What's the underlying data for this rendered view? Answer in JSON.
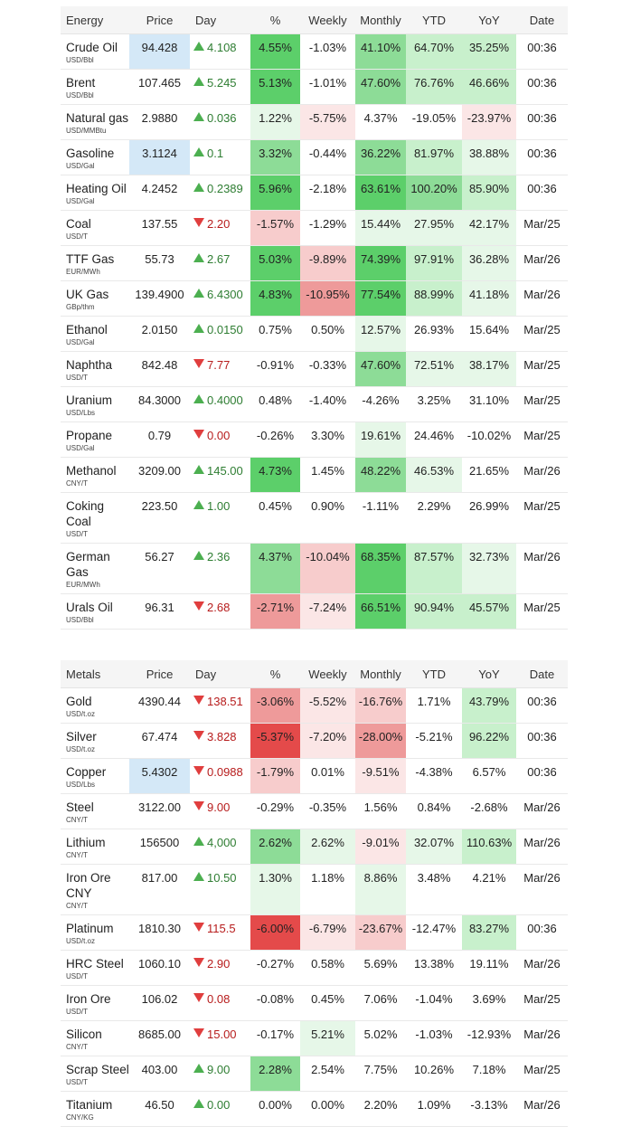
{
  "colors": {
    "strong_green": "#5ccf6a",
    "mid_green": "#8ddc97",
    "light_green": "#c8f0cc",
    "faint_green": "#e6f7e8",
    "strong_red": "#e44a4a",
    "mid_red": "#ee9a9a",
    "light_red": "#f7cccc",
    "faint_red": "#fbe6e6",
    "highlight_blue": "#d4e8f7",
    "up_arrow": "#4caf50",
    "down_arrow": "#e03e3e"
  },
  "energy": {
    "headers": [
      "Energy",
      "Price",
      "Day",
      "%",
      "Weekly",
      "Monthly",
      "YTD",
      "YoY",
      "Date"
    ],
    "rows": [
      {
        "name": "Crude Oil",
        "unit": "USD/Bbl",
        "price": "94.428",
        "dir": "up",
        "day": "4.108",
        "pct": "4.55%",
        "weekly": "-1.03%",
        "monthly": "41.10%",
        "ytd": "64.70%",
        "yoy": "35.25%",
        "date": "00:36",
        "hl": true,
        "c": [
          "sg",
          "",
          "mg",
          "lg",
          "lg"
        ]
      },
      {
        "name": "Brent",
        "unit": "USD/Bbl",
        "price": "107.465",
        "dir": "up",
        "day": "5.245",
        "pct": "5.13%",
        "weekly": "-1.01%",
        "monthly": "47.60%",
        "ytd": "76.76%",
        "yoy": "46.66%",
        "date": "00:36",
        "hl": false,
        "c": [
          "sg",
          "",
          "mg",
          "lg",
          "lg"
        ]
      },
      {
        "name": "Natural gas",
        "unit": "USD/MMBtu",
        "price": "2.9880",
        "dir": "up",
        "day": "0.036",
        "pct": "1.22%",
        "weekly": "-5.75%",
        "monthly": "4.37%",
        "ytd": "-19.05%",
        "yoy": "-23.97%",
        "date": "00:36",
        "hl": false,
        "c": [
          "fg",
          "fr",
          "",
          "",
          "fr"
        ]
      },
      {
        "name": "Gasoline",
        "unit": "USD/Gal",
        "price": "3.1124",
        "dir": "up",
        "day": "0.1",
        "pct": "3.32%",
        "weekly": "-0.44%",
        "monthly": "36.22%",
        "ytd": "81.97%",
        "yoy": "38.88%",
        "date": "00:36",
        "hl": true,
        "c": [
          "mg",
          "",
          "mg",
          "lg",
          "fg"
        ]
      },
      {
        "name": "Heating Oil",
        "unit": "USD/Gal",
        "price": "4.2452",
        "dir": "up",
        "day": "0.2389",
        "pct": "5.96%",
        "weekly": "-2.18%",
        "monthly": "63.61%",
        "ytd": "100.20%",
        "yoy": "85.90%",
        "date": "00:36",
        "hl": false,
        "c": [
          "sg",
          "",
          "sg",
          "mg",
          "lg"
        ]
      },
      {
        "name": "Coal",
        "unit": "USD/T",
        "price": "137.55",
        "dir": "down",
        "day": "2.20",
        "pct": "-1.57%",
        "weekly": "-1.29%",
        "monthly": "15.44%",
        "ytd": "27.95%",
        "yoy": "42.17%",
        "date": "Mar/25",
        "hl": false,
        "c": [
          "lr",
          "",
          "fg",
          "fg",
          "fg"
        ]
      },
      {
        "name": "TTF Gas",
        "unit": "EUR/MWh",
        "price": "55.73",
        "dir": "up",
        "day": "2.67",
        "pct": "5.03%",
        "weekly": "-9.89%",
        "monthly": "74.39%",
        "ytd": "97.91%",
        "yoy": "36.28%",
        "date": "Mar/26",
        "hl": false,
        "c": [
          "sg",
          "lr",
          "sg",
          "lg",
          "fg"
        ]
      },
      {
        "name": "UK Gas",
        "unit": "GBp/thm",
        "price": "139.4900",
        "dir": "up",
        "day": "6.4300",
        "pct": "4.83%",
        "weekly": "-10.95%",
        "monthly": "77.54%",
        "ytd": "88.99%",
        "yoy": "41.18%",
        "date": "Mar/26",
        "hl": false,
        "c": [
          "sg",
          "mr",
          "sg",
          "lg",
          "fg"
        ]
      },
      {
        "name": "Ethanol",
        "unit": "USD/Gal",
        "price": "2.0150",
        "dir": "up",
        "day": "0.0150",
        "pct": "0.75%",
        "weekly": "0.50%",
        "monthly": "12.57%",
        "ytd": "26.93%",
        "yoy": "15.64%",
        "date": "Mar/25",
        "hl": false,
        "c": [
          "",
          "",
          "fg",
          "",
          ""
        ]
      },
      {
        "name": "Naphtha",
        "unit": "USD/T",
        "price": "842.48",
        "dir": "down",
        "day": "7.77",
        "pct": "-0.91%",
        "weekly": "-0.33%",
        "monthly": "47.60%",
        "ytd": "72.51%",
        "yoy": "38.17%",
        "date": "Mar/25",
        "hl": false,
        "c": [
          "",
          "",
          "mg",
          "fg",
          "fg"
        ]
      },
      {
        "name": "Uranium",
        "unit": "USD/Lbs",
        "price": "84.3000",
        "dir": "up",
        "day": "0.4000",
        "pct": "0.48%",
        "weekly": "-1.40%",
        "monthly": "-4.26%",
        "ytd": "3.25%",
        "yoy": "31.10%",
        "date": "Mar/25",
        "hl": false,
        "c": [
          "",
          "",
          "",
          "",
          ""
        ]
      },
      {
        "name": "Propane",
        "unit": "USD/Gal",
        "price": "0.79",
        "dir": "down",
        "day": "0.00",
        "pct": "-0.26%",
        "weekly": "3.30%",
        "monthly": "19.61%",
        "ytd": "24.46%",
        "yoy": "-10.02%",
        "date": "Mar/25",
        "hl": false,
        "c": [
          "",
          "",
          "fg",
          "",
          ""
        ]
      },
      {
        "name": "Methanol",
        "unit": "CNY/T",
        "price": "3209.00",
        "dir": "up",
        "day": "145.00",
        "pct": "4.73%",
        "weekly": "1.45%",
        "monthly": "48.22%",
        "ytd": "46.53%",
        "yoy": "21.65%",
        "date": "Mar/26",
        "hl": false,
        "c": [
          "sg",
          "",
          "mg",
          "fg",
          ""
        ]
      },
      {
        "name": "Coking Coal",
        "unit": "USD/T",
        "price": "223.50",
        "dir": "up",
        "day": "1.00",
        "pct": "0.45%",
        "weekly": "0.90%",
        "monthly": "-1.11%",
        "ytd": "2.29%",
        "yoy": "26.99%",
        "date": "Mar/25",
        "hl": false,
        "c": [
          "",
          "",
          "",
          "",
          ""
        ]
      },
      {
        "name": "German Gas",
        "unit": "EUR/MWh",
        "price": "56.27",
        "dir": "up",
        "day": "2.36",
        "pct": "4.37%",
        "weekly": "-10.04%",
        "monthly": "68.35%",
        "ytd": "87.57%",
        "yoy": "32.73%",
        "date": "Mar/26",
        "hl": false,
        "c": [
          "mg",
          "lr",
          "sg",
          "lg",
          "fg"
        ]
      },
      {
        "name": "Urals Oil",
        "unit": "USD/Bbl",
        "price": "96.31",
        "dir": "down",
        "day": "2.68",
        "pct": "-2.71%",
        "weekly": "-7.24%",
        "monthly": "66.51%",
        "ytd": "90.94%",
        "yoy": "45.57%",
        "date": "Mar/25",
        "hl": false,
        "c": [
          "mr",
          "fr",
          "sg",
          "lg",
          "lg"
        ]
      }
    ]
  },
  "metals": {
    "headers": [
      "Metals",
      "Price",
      "Day",
      "%",
      "Weekly",
      "Monthly",
      "YTD",
      "YoY",
      "Date"
    ],
    "rows": [
      {
        "name": "Gold",
        "unit": "USD/t.oz",
        "price": "4390.44",
        "dir": "down",
        "day": "138.51",
        "pct": "-3.06%",
        "weekly": "-5.52%",
        "monthly": "-16.76%",
        "ytd": "1.71%",
        "yoy": "43.79%",
        "date": "00:36",
        "hl": false,
        "c": [
          "mr",
          "fr",
          "lr",
          "",
          "lg"
        ]
      },
      {
        "name": "Silver",
        "unit": "USD/t.oz",
        "price": "67.474",
        "dir": "down",
        "day": "3.828",
        "pct": "-5.37%",
        "weekly": "-7.20%",
        "monthly": "-28.00%",
        "ytd": "-5.21%",
        "yoy": "96.22%",
        "date": "00:36",
        "hl": false,
        "c": [
          "sr",
          "fr",
          "mr",
          "",
          "lg"
        ]
      },
      {
        "name": "Copper",
        "unit": "USD/Lbs",
        "price": "5.4302",
        "dir": "down",
        "day": "0.0988",
        "pct": "-1.79%",
        "weekly": "0.01%",
        "monthly": "-9.51%",
        "ytd": "-4.38%",
        "yoy": "6.57%",
        "date": "00:36",
        "hl": true,
        "c": [
          "lr",
          "",
          "fr",
          "",
          ""
        ]
      },
      {
        "name": "Steel",
        "unit": "CNY/T",
        "price": "3122.00",
        "dir": "down",
        "day": "9.00",
        "pct": "-0.29%",
        "weekly": "-0.35%",
        "monthly": "1.56%",
        "ytd": "0.84%",
        "yoy": "-2.68%",
        "date": "Mar/26",
        "hl": false,
        "c": [
          "",
          "",
          "",
          "",
          ""
        ]
      },
      {
        "name": "Lithium",
        "unit": "CNY/T",
        "price": "156500",
        "dir": "up",
        "day": "4,000",
        "pct": "2.62%",
        "weekly": "2.62%",
        "monthly": "-9.01%",
        "ytd": "32.07%",
        "yoy": "110.63%",
        "date": "Mar/26",
        "hl": false,
        "c": [
          "mg",
          "fg",
          "fr",
          "fg",
          "lg"
        ]
      },
      {
        "name": "Iron Ore CNY",
        "unit": "CNY/T",
        "price": "817.00",
        "dir": "up",
        "day": "10.50",
        "pct": "1.30%",
        "weekly": "1.18%",
        "monthly": "8.86%",
        "ytd": "3.48%",
        "yoy": "4.21%",
        "date": "Mar/26",
        "hl": false,
        "c": [
          "fg",
          "",
          "fg",
          "",
          ""
        ]
      },
      {
        "name": "Platinum",
        "unit": "USD/t.oz",
        "price": "1810.30",
        "dir": "down",
        "day": "115.5",
        "pct": "-6.00%",
        "weekly": "-6.79%",
        "monthly": "-23.67%",
        "ytd": "-12.47%",
        "yoy": "83.27%",
        "date": "00:36",
        "hl": false,
        "c": [
          "sr",
          "fr",
          "lr",
          "",
          "lg"
        ]
      },
      {
        "name": "HRC Steel",
        "unit": "USD/T",
        "price": "1060.10",
        "dir": "down",
        "day": "2.90",
        "pct": "-0.27%",
        "weekly": "0.58%",
        "monthly": "5.69%",
        "ytd": "13.38%",
        "yoy": "19.11%",
        "date": "Mar/26",
        "hl": false,
        "c": [
          "",
          "",
          "",
          "",
          ""
        ]
      },
      {
        "name": "Iron Ore",
        "unit": "USD/T",
        "price": "106.02",
        "dir": "down",
        "day": "0.08",
        "pct": "-0.08%",
        "weekly": "0.45%",
        "monthly": "7.06%",
        "ytd": "-1.04%",
        "yoy": "3.69%",
        "date": "Mar/25",
        "hl": false,
        "c": [
          "",
          "",
          "",
          "",
          ""
        ]
      },
      {
        "name": "Silicon",
        "unit": "CNY/T",
        "price": "8685.00",
        "dir": "down",
        "day": "15.00",
        "pct": "-0.17%",
        "weekly": "5.21%",
        "monthly": "5.02%",
        "ytd": "-1.03%",
        "yoy": "-12.93%",
        "date": "Mar/26",
        "hl": false,
        "c": [
          "",
          "fg",
          "",
          "",
          ""
        ]
      },
      {
        "name": "Scrap Steel",
        "unit": "USD/T",
        "price": "403.00",
        "dir": "up",
        "day": "9.00",
        "pct": "2.28%",
        "weekly": "2.54%",
        "monthly": "7.75%",
        "ytd": "10.26%",
        "yoy": "7.18%",
        "date": "Mar/25",
        "hl": false,
        "c": [
          "mg",
          "",
          "",
          "",
          ""
        ]
      },
      {
        "name": "Titanium",
        "unit": "CNY/KG",
        "price": "46.50",
        "dir": "up",
        "day": "0.00",
        "pct": "0.00%",
        "weekly": "0.00%",
        "monthly": "2.20%",
        "ytd": "1.09%",
        "yoy": "-3.13%",
        "date": "Mar/26",
        "hl": false,
        "c": [
          "",
          "",
          "",
          "",
          ""
        ]
      }
    ]
  }
}
